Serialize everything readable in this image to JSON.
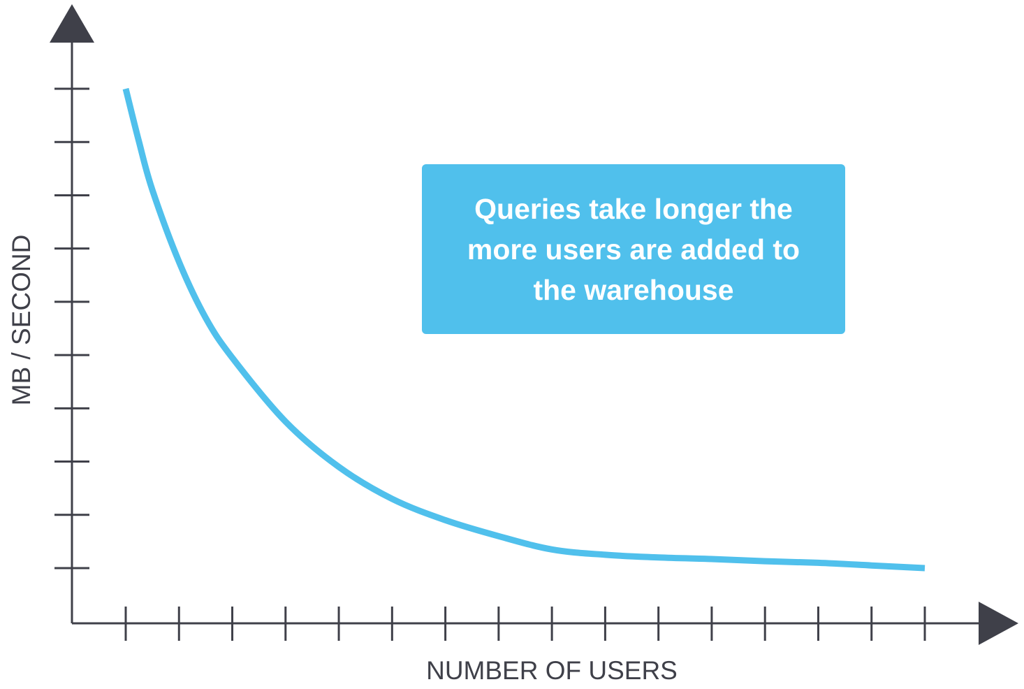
{
  "chart_data": {
    "type": "line",
    "title": "",
    "xlabel": "NUMBER OF USERS",
    "ylabel": "MB / SECOND",
    "x_tick_count": 16,
    "y_tick_count": 10,
    "xlim": [
      0,
      15
    ],
    "ylim": [
      0,
      9
    ],
    "grid": false,
    "series": [
      {
        "color": "#50c0ec",
        "x": [
          0,
          0.25,
          0.5,
          1,
          1.5,
          2,
          3,
          4,
          5,
          6,
          7,
          8,
          9,
          10,
          11,
          12,
          13,
          14,
          15
        ],
        "values": [
          9.0,
          8.0,
          7.1,
          5.75,
          4.7,
          3.95,
          2.75,
          1.9,
          1.3,
          0.9,
          0.6,
          0.35,
          0.25,
          0.2,
          0.17,
          0.13,
          0.1,
          0.05,
          0.0
        ]
      }
    ],
    "annotations": [
      {
        "text": "Queries take longer the more users are added to the warehouse",
        "background": "#50c0ec"
      }
    ]
  },
  "colors": {
    "axis": "#3f4049",
    "line": "#50c0ec",
    "label": "#3f4049"
  }
}
